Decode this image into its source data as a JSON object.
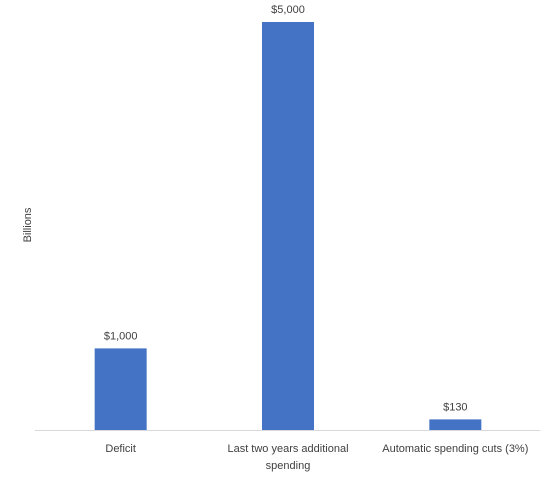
{
  "chart_data": {
    "type": "bar",
    "y_label": "Billions",
    "categories": [
      "Deficit",
      "Last two years additional spending",
      "Automatic spending cuts (3%)"
    ],
    "values": [
      1000,
      5000,
      130
    ],
    "value_labels": [
      "$1,000",
      "$5,000",
      "$130"
    ],
    "color": "#4472c4",
    "ylim": [
      0,
      5000
    ]
  }
}
